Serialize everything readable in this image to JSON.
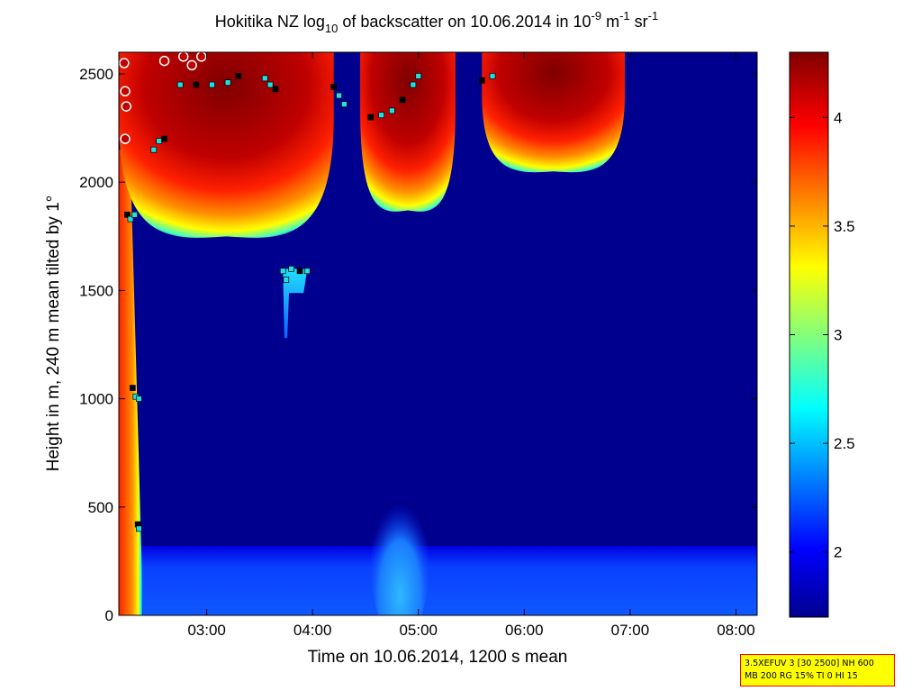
{
  "chart_data": {
    "type": "heatmap",
    "title_parts": {
      "prefix": "Hokitika NZ log",
      "sub": "10",
      "middle": " of backscatter on 10.06.2014 in 10",
      "sup1": "-9",
      "unit1": " m",
      "sup2": "-1",
      "unit2": " sr",
      "sup3": "-1"
    },
    "xlabel": "Time on 10.06.2014, 1200 s mean",
    "ylabel": "Height in m, 240 m mean tilted by 1°",
    "x_ticks": [
      "03:00",
      "04:00",
      "05:00",
      "06:00",
      "07:00",
      "08:00"
    ],
    "x_tick_hours": [
      3,
      4,
      5,
      6,
      7,
      8
    ],
    "x_range_hours": [
      2.17,
      8.2
    ],
    "y_ticks": [
      0,
      500,
      1000,
      1500,
      2000,
      2500
    ],
    "ylim": [
      0,
      2600
    ],
    "colorbar": {
      "ticks": [
        "2",
        "2.5",
        "3",
        "3.5",
        "4"
      ],
      "tick_values": [
        2,
        2.5,
        3,
        3.5,
        4
      ],
      "range": [
        1.7,
        4.3
      ],
      "colors": [
        "#00008f",
        "#0000ff",
        "#00ffff",
        "#ffff00",
        "#ff0000",
        "#800000"
      ]
    },
    "features": [
      {
        "name": "surface aerosol layer",
        "time": [
          2.33,
          8.2
        ],
        "height": [
          0,
          320
        ],
        "level": 2.2
      },
      {
        "name": "near-ground plume",
        "time": [
          4.55,
          5.1
        ],
        "height": [
          0,
          580
        ],
        "level": 2.55
      },
      {
        "name": "early boundary layer",
        "time": [
          2.17,
          2.4
        ],
        "height": [
          0,
          2150
        ],
        "level": 3.6
      },
      {
        "name": "cloud 1",
        "time": [
          2.17,
          4.2
        ],
        "height": [
          1750,
          2600
        ],
        "level": 4.3
      },
      {
        "name": "cloud 2",
        "time": [
          4.45,
          5.35
        ],
        "height": [
          1870,
          2600
        ],
        "level": 4.3
      },
      {
        "name": "cloud 3",
        "time": [
          5.6,
          6.95
        ],
        "height": [
          2050,
          2600
        ],
        "level": 4.3
      },
      {
        "name": "thin layer",
        "time": [
          3.72,
          3.95
        ],
        "height": [
          1280,
          1600
        ],
        "level": 2.8
      }
    ],
    "markers": [
      {
        "time": 2.25,
        "height": 1850
      },
      {
        "time": 2.28,
        "height": 1830
      },
      {
        "time": 2.32,
        "height": 1850
      },
      {
        "time": 2.3,
        "height": 1050
      },
      {
        "time": 2.33,
        "height": 1010
      },
      {
        "time": 2.36,
        "height": 1000
      },
      {
        "time": 2.35,
        "height": 420
      },
      {
        "time": 2.36,
        "height": 400
      },
      {
        "time": 2.55,
        "height": 2190
      },
      {
        "time": 2.6,
        "height": 2200
      },
      {
        "time": 2.5,
        "height": 2150
      },
      {
        "time": 2.75,
        "height": 2450
      },
      {
        "time": 2.9,
        "height": 2450
      },
      {
        "time": 3.05,
        "height": 2450
      },
      {
        "time": 3.2,
        "height": 2460
      },
      {
        "time": 3.3,
        "height": 2490
      },
      {
        "time": 3.55,
        "height": 2480
      },
      {
        "time": 3.6,
        "height": 2450
      },
      {
        "time": 3.65,
        "height": 2430
      },
      {
        "time": 3.72,
        "height": 1590
      },
      {
        "time": 3.8,
        "height": 1600
      },
      {
        "time": 3.88,
        "height": 1590
      },
      {
        "time": 3.95,
        "height": 1590
      },
      {
        "time": 3.75,
        "height": 1550
      },
      {
        "time": 4.2,
        "height": 2440
      },
      {
        "time": 4.25,
        "height": 2400
      },
      {
        "time": 4.3,
        "height": 2360
      },
      {
        "time": 4.55,
        "height": 2300
      },
      {
        "time": 4.65,
        "height": 2310
      },
      {
        "time": 4.75,
        "height": 2330
      },
      {
        "time": 4.85,
        "height": 2380
      },
      {
        "time": 4.95,
        "height": 2450
      },
      {
        "time": 5.0,
        "height": 2490
      },
      {
        "time": 5.6,
        "height": 2470
      },
      {
        "time": 5.7,
        "height": 2490
      }
    ],
    "circles": [
      {
        "time": 2.22,
        "height": 2550
      },
      {
        "time": 2.23,
        "height": 2420
      },
      {
        "time": 2.24,
        "height": 2350
      },
      {
        "time": 2.23,
        "height": 2200
      },
      {
        "time": 2.6,
        "height": 2560
      },
      {
        "time": 2.78,
        "height": 2580
      },
      {
        "time": 2.86,
        "height": 2540
      },
      {
        "time": 2.95,
        "height": 2580
      }
    ]
  },
  "settings_box": {
    "line1": "3.5XEFUV 3 [30 2500] NH 600",
    "line2": "MB 200 RG 15% TI 0 HI 15"
  }
}
